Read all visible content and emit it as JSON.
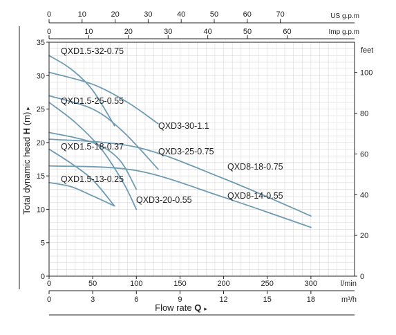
{
  "chart_data": {
    "type": "line",
    "title": "",
    "colors": {
      "curve": "#6f9bb3",
      "grid": "#d9d9d9",
      "axis": "#222222"
    },
    "x_axis": {
      "label": "l/min",
      "range": [
        0,
        300
      ],
      "ticks": [
        "0",
        "50",
        "100",
        "150",
        "200",
        "250",
        "300"
      ]
    },
    "x_axis_m3h": {
      "label": "m³/h",
      "ticks": [
        "0",
        "3",
        "6",
        "9",
        "12",
        "15",
        "18"
      ]
    },
    "x_axis_imp": {
      "label": "Imp g.p.m",
      "ticks": [
        "0",
        "10",
        "20",
        "30",
        "40",
        "50",
        "60"
      ]
    },
    "x_axis_us": {
      "label": "US g.p.m",
      "ticks": [
        "0",
        "10",
        "20",
        "30",
        "40",
        "50",
        "60",
        "70"
      ]
    },
    "xlabel": {
      "text": "Flow rate ",
      "bold": "Q",
      "arrow": "▸"
    },
    "y_axis": {
      "range": [
        0,
        35
      ],
      "ticks": [
        "0",
        "5",
        "10",
        "15",
        "20",
        "25",
        "30",
        "35"
      ]
    },
    "ylabel": {
      "text": "Total dynamic head ",
      "bold": "H",
      "unit": " (m)",
      "arrow": "▸"
    },
    "y_axis_feet": {
      "label": "feet",
      "ticks": [
        "0",
        "20",
        "40",
        "60",
        "80",
        "100"
      ]
    },
    "series": [
      {
        "name": "QXD1.5-32-0.75",
        "points": [
          [
            0,
            33
          ],
          [
            25,
            31
          ],
          [
            50,
            27.8
          ],
          [
            75,
            22.5
          ]
        ]
      },
      {
        "name": "QXD1.5-25-0.55",
        "points": [
          [
            0,
            26
          ],
          [
            30,
            23
          ],
          [
            60,
            19
          ],
          [
            85,
            14
          ],
          [
            100,
            10
          ]
        ]
      },
      {
        "name": "QXD1.5-18-0.37",
        "points": [
          [
            0,
            19
          ],
          [
            25,
            16.9
          ],
          [
            50,
            14.4
          ],
          [
            75,
            10.5
          ]
        ]
      },
      {
        "name": "QXD1.5-13-0.25",
        "points": [
          [
            0,
            14
          ],
          [
            25,
            13.4
          ],
          [
            50,
            12
          ],
          [
            75,
            10.5
          ]
        ]
      },
      {
        "name": "QXD3-30-1.1",
        "points": [
          [
            0,
            30.5
          ],
          [
            50,
            28.7
          ],
          [
            90,
            26
          ],
          [
            125,
            22.8
          ]
        ]
      },
      {
        "name": "QXD3-25-0.75",
        "points": [
          [
            0,
            27
          ],
          [
            50,
            25
          ],
          [
            85,
            21.6
          ],
          [
            125,
            16
          ]
        ]
      },
      {
        "name": "QXD3-20-0.55",
        "points": [
          [
            0,
            21.5
          ],
          [
            50,
            20
          ],
          [
            80,
            17.5
          ],
          [
            100,
            13
          ]
        ]
      },
      {
        "name": "QXD8-18-0.75",
        "points": [
          [
            0,
            20.5
          ],
          [
            100,
            19.3
          ],
          [
            200,
            14.6
          ],
          [
            300,
            9
          ]
        ]
      },
      {
        "name": "QXD8-14-0.55",
        "points": [
          [
            0,
            16.5
          ],
          [
            100,
            15.8
          ],
          [
            200,
            11.8
          ],
          [
            300,
            7.3
          ]
        ]
      }
    ],
    "grid": true
  }
}
